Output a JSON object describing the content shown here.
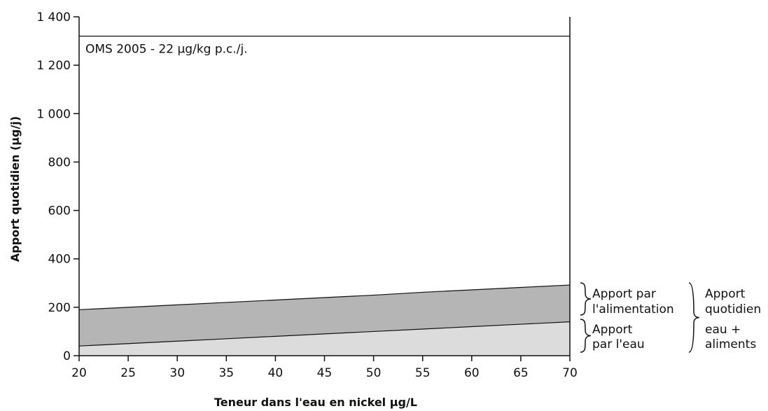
{
  "chart_data": {
    "type": "area",
    "x": [
      20,
      25,
      30,
      35,
      40,
      45,
      50,
      55,
      60,
      65,
      70
    ],
    "xticks": [
      20,
      25,
      30,
      35,
      40,
      45,
      50,
      55,
      60,
      65,
      70
    ],
    "yticks": [
      0,
      200,
      400,
      600,
      800,
      1000,
      1200,
      1400
    ],
    "ytick_labels": [
      "0",
      "200",
      "400",
      "600",
      "800",
      "1 000",
      "1 200",
      "1 400"
    ],
    "xlim": [
      20,
      70
    ],
    "ylim": [
      0,
      1400
    ],
    "xlabel": "Teneur dans l'eau en nickel µg/L",
    "ylabel": "Apport quotidien (µg/j)",
    "grid": false,
    "series": [
      {
        "name": "Apport par l'eau",
        "values": [
          40,
          50,
          60,
          70,
          80,
          90,
          100,
          110,
          120,
          130,
          140
        ],
        "color": "#dcdcdc"
      },
      {
        "name": "Apport quotidien eau + aliments",
        "values": [
          190,
          200,
          210,
          220,
          230,
          240,
          250,
          262,
          272,
          282,
          292
        ],
        "color": "#b5b5b5"
      }
    ],
    "reference_line": {
      "value": 1320,
      "label": "OMS 2005 - 22 µg/kg p.c./j.",
      "color": "#111111"
    },
    "annotations": {
      "food_line1": "Apport par",
      "food_line2": "l'alimentation",
      "water_line1": "Apport",
      "water_line2": "par l'eau",
      "total_line1": "Apport",
      "total_line2": "quotidien",
      "total_line3": "eau +",
      "total_line4": "aliments"
    },
    "colors": {
      "axis": "#111111",
      "water_fill": "#dcdcdc",
      "food_fill": "#b5b5b5"
    }
  }
}
